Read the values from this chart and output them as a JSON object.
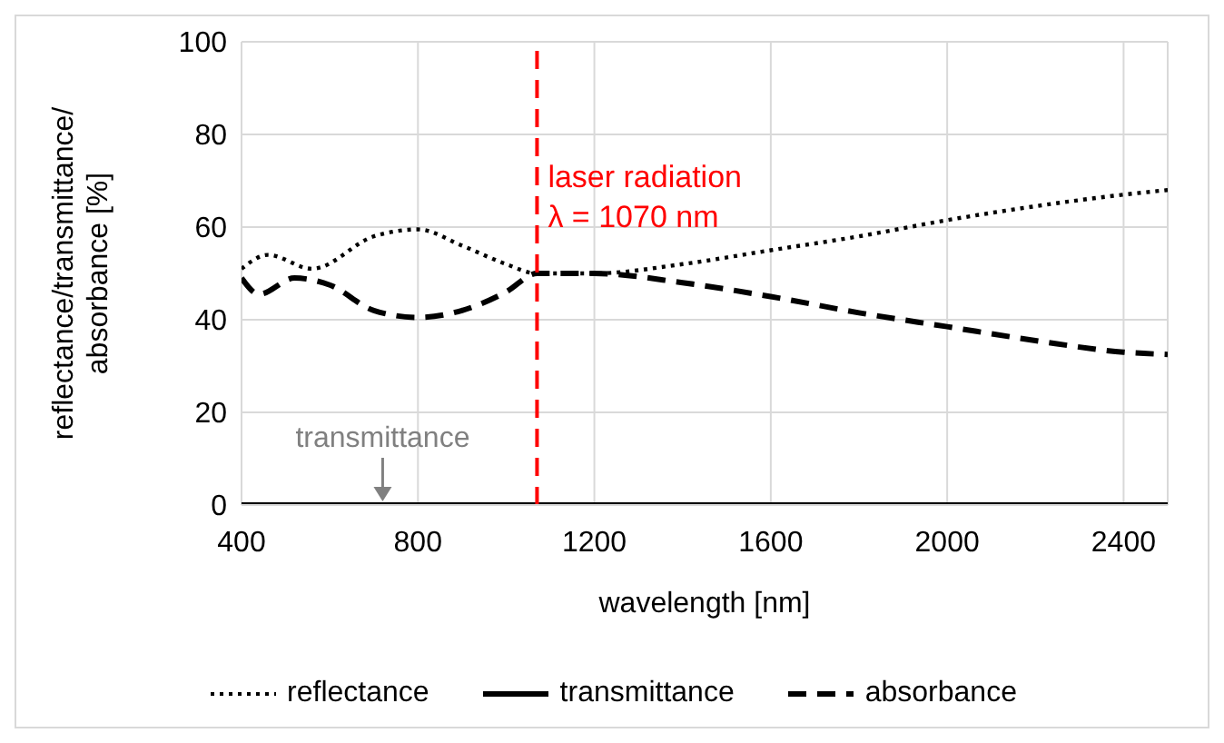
{
  "chart_data": {
    "type": "line",
    "xlabel": "wavelength [nm]",
    "ylabel": "reflectance/transmittance/absorbance [%]",
    "xlim": [
      400,
      2500
    ],
    "xticks": [
      400,
      800,
      1200,
      1600,
      2000,
      2400
    ],
    "ylim": [
      0,
      100
    ],
    "yticks": [
      0,
      20,
      40,
      60,
      80,
      100
    ],
    "grid": true,
    "legend": "bottom",
    "marker": "none",
    "series": [
      {
        "name": "reflectance",
        "color": "#000000",
        "line_style": "dotted",
        "x": [
          400,
          460,
          560,
          700,
          800,
          900,
          1000,
          1070,
          1200,
          1400,
          1600,
          1800,
          2000,
          2200,
          2400,
          2500
        ],
        "values": [
          51,
          54,
          51,
          58,
          59.5,
          56,
          52,
          50,
          50,
          52,
          55,
          58,
          61.5,
          64.5,
          67,
          68
        ]
      },
      {
        "name": "transmittance",
        "color": "#000000",
        "line_style": "solid",
        "x": [
          400,
          2500
        ],
        "values": [
          0,
          0
        ]
      },
      {
        "name": "absorbance",
        "color": "#000000",
        "line_style": "dashed",
        "x": [
          400,
          440,
          520,
          600,
          700,
          800,
          900,
          1000,
          1070,
          1200,
          1400,
          1600,
          1800,
          2000,
          2200,
          2400,
          2500
        ],
        "values": [
          49,
          45.5,
          49,
          47.5,
          42,
          40.5,
          42,
          46,
          50,
          50,
          48,
          45,
          41.5,
          38.5,
          35.5,
          33,
          32.5
        ]
      }
    ],
    "ref_lines": [
      {
        "axis": "x",
        "value": 1070,
        "label": "laser radiation\nλ = 1070 nm",
        "color": "#ff0000",
        "line_style": "dashed"
      }
    ],
    "annotations": [
      {
        "text": "transmittance",
        "x": 720,
        "y": 0
      }
    ]
  }
}
